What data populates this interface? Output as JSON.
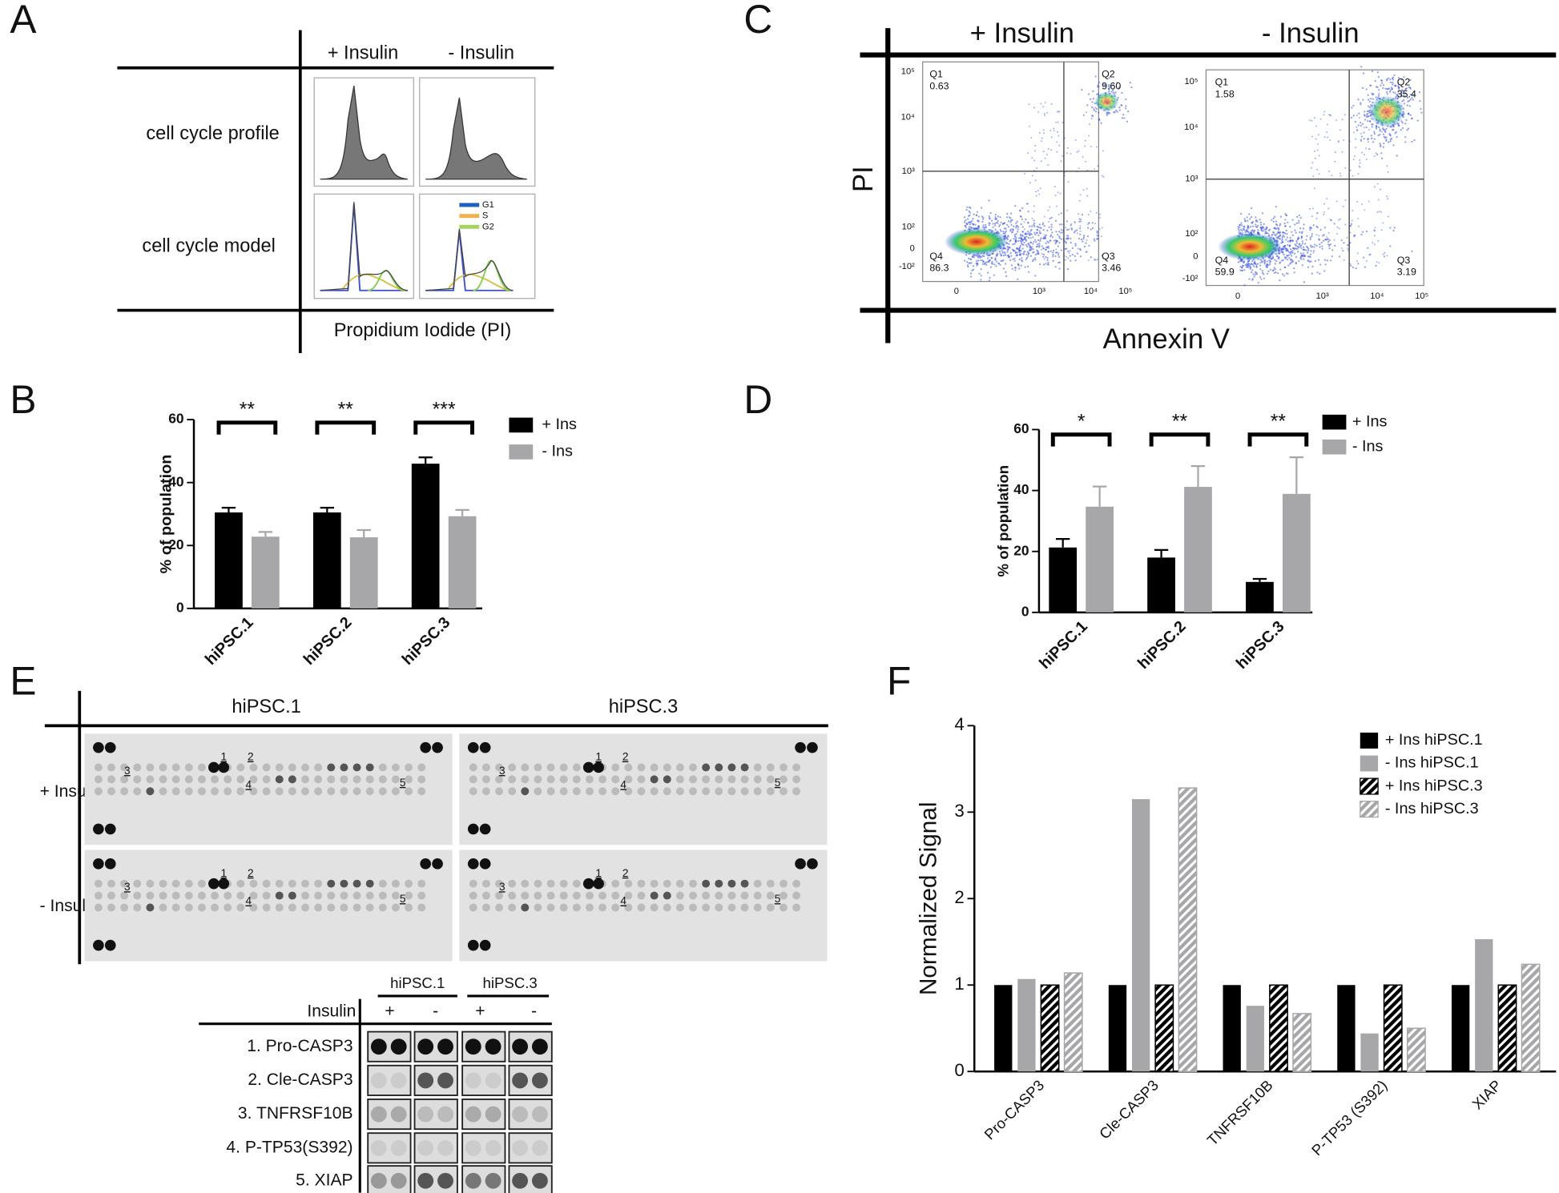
{
  "panel_letters": [
    "A",
    "B",
    "C",
    "D",
    "E",
    "F"
  ],
  "panel_a": {
    "columns": [
      "+ Insulin",
      "- Insulin"
    ],
    "rows": [
      "cell cycle profile",
      "cell cycle model"
    ],
    "x_label": "Propidium Iodide (PI)",
    "legend": [
      "G1",
      "S",
      "G2"
    ]
  },
  "panel_c": {
    "columns": [
      "+ Insulin",
      "- Insulin"
    ],
    "y_label": "PI",
    "x_label": "Annexin V",
    "y_ticks": [
      "10⁵",
      "10⁴",
      "10³",
      "10²",
      "0",
      "-10²"
    ],
    "x_ticks": [
      "0",
      "10³",
      "10⁴",
      "10⁵"
    ],
    "plots": [
      {
        "quadrants": [
          {
            "name": "Q1",
            "value": "0.63"
          },
          {
            "name": "Q2",
            "value": "9.60"
          },
          {
            "name": "Q4",
            "value": "86.3"
          },
          {
            "name": "Q3",
            "value": "3.46"
          }
        ]
      },
      {
        "quadrants": [
          {
            "name": "Q1",
            "value": "1.58"
          },
          {
            "name": "Q2",
            "value": "35.4"
          },
          {
            "name": "Q4",
            "value": "59.9"
          },
          {
            "name": "Q3",
            "value": "3.19"
          }
        ]
      }
    ]
  },
  "panel_e": {
    "columns": [
      "hiPSC.1",
      "hiPSC.3"
    ],
    "rows": [
      "+ Insulin",
      "- Insulin"
    ],
    "spot_labels": [
      "1",
      "2",
      "3",
      "4",
      "5"
    ],
    "blot": {
      "columns": [
        "hiPSC.1",
        "hiPSC.3"
      ],
      "insulin_label": "Insulin",
      "insulin_states": [
        "+",
        "-",
        "+",
        "-"
      ],
      "rows": [
        "1. Pro-CASP3",
        "2. Cle-CASP3",
        "3. TNFRSF10B",
        "4. P-TP53(S392)",
        "5. XIAP"
      ]
    }
  },
  "chart_data": [
    {
      "type": "bar",
      "y_label": "% of population",
      "categories": [
        "hiPSC.1",
        "hiPSC.2",
        "hiPSC.3"
      ],
      "series": [
        {
          "name": "+ Ins",
          "color": "#000000",
          "values": [
            30.5,
            30.5,
            46
          ],
          "errors": [
            1.5,
            1.5,
            2
          ]
        },
        {
          "name": "- Ins",
          "color": "#a7a7aa",
          "values": [
            22.8,
            22.6,
            29.3
          ],
          "errors": [
            1.5,
            2.3,
            2
          ]
        }
      ],
      "annotations": [
        "**",
        "**",
        "***"
      ],
      "ylim": [
        0,
        60
      ],
      "yticks": [
        0,
        20,
        40,
        60
      ]
    },
    {
      "type": "bar",
      "y_label": "% of population",
      "categories": [
        "hiPSC.1",
        "hiPSC.2",
        "hiPSC.3"
      ],
      "series": [
        {
          "name": "+ Ins",
          "color": "#000000",
          "values": [
            21.3,
            18,
            10
          ],
          "errors": [
            2.8,
            2.5,
            1
          ]
        },
        {
          "name": "- Ins",
          "color": "#a7a7aa",
          "values": [
            34.7,
            41.2,
            38.9
          ],
          "errors": [
            6.6,
            6.8,
            12
          ]
        }
      ],
      "annotations": [
        "*",
        "**",
        "**"
      ],
      "ylim": [
        0,
        60
      ],
      "yticks": [
        0,
        20,
        40,
        60
      ]
    },
    {
      "type": "bar",
      "y_label": "Normalized Signal",
      "categories": [
        "Pro-CASP3",
        "Cle-CASP3",
        "TNFRSF10B",
        "P-TP53 (S392)",
        "XIAP"
      ],
      "series": [
        {
          "name": "+ Ins hiPSC.1",
          "color": "#000000",
          "pattern": "solid",
          "values": [
            1,
            1,
            1,
            1,
            1
          ]
        },
        {
          "name": "- Ins hiPSC.1",
          "color": "#a7a7aa",
          "pattern": "solid",
          "values": [
            1.07,
            3.15,
            0.76,
            0.44,
            1.53
          ]
        },
        {
          "name": "+ Ins hiPSC.3",
          "color": "#000000",
          "pattern": "hatch",
          "values": [
            1,
            1,
            1,
            1,
            1
          ]
        },
        {
          "name": "- Ins hiPSC.3",
          "color": "#a7a7aa",
          "pattern": "hatch",
          "values": [
            1.14,
            3.28,
            0.67,
            0.5,
            1.24
          ]
        }
      ],
      "ylim": [
        0,
        4
      ],
      "yticks": [
        0,
        1,
        2,
        3,
        4
      ]
    }
  ]
}
